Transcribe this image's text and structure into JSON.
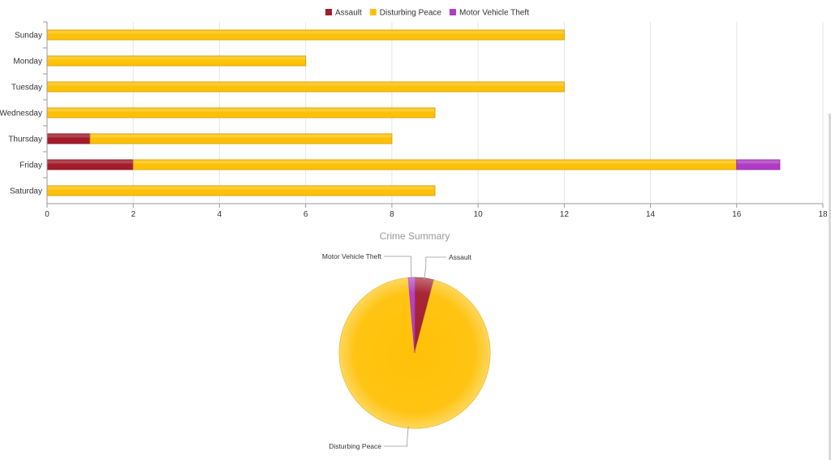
{
  "colors": {
    "assault": "#a31c2c",
    "disturbing_peace": "#ffc107",
    "motor_vehicle_theft": "#b03cc4",
    "grid": "#e6e6e6",
    "axis": "#999999",
    "label": "#333333",
    "title": "#9a9a9a"
  },
  "chart_data": [
    {
      "type": "bar",
      "orientation": "horizontal",
      "stacked": true,
      "categories": [
        "Sunday",
        "Monday",
        "Tuesday",
        "Wednesday",
        "Thursday",
        "Friday",
        "Saturday"
      ],
      "series": [
        {
          "name": "Assault",
          "color_key": "assault",
          "values": [
            0,
            0,
            0,
            0,
            1,
            2,
            0
          ]
        },
        {
          "name": "Disturbing Peace",
          "color_key": "disturbing_peace",
          "values": [
            12,
            6,
            12,
            9,
            7,
            14,
            9
          ]
        },
        {
          "name": "Motor Vehicle Theft",
          "color_key": "motor_vehicle_theft",
          "values": [
            0,
            0,
            0,
            0,
            0,
            1,
            0
          ]
        }
      ],
      "xlim": [
        0,
        18
      ],
      "xticks": [
        0,
        2,
        4,
        6,
        8,
        10,
        12,
        14,
        16,
        18
      ],
      "grid": true,
      "legend": "top-center"
    },
    {
      "type": "pie",
      "title": "Crime Summary",
      "labels": [
        "Assault",
        "Disturbing Peace",
        "Motor Vehicle Theft"
      ],
      "values": [
        3,
        69,
        1
      ],
      "color_keys": [
        "assault",
        "disturbing_peace",
        "motor_vehicle_theft"
      ]
    }
  ]
}
